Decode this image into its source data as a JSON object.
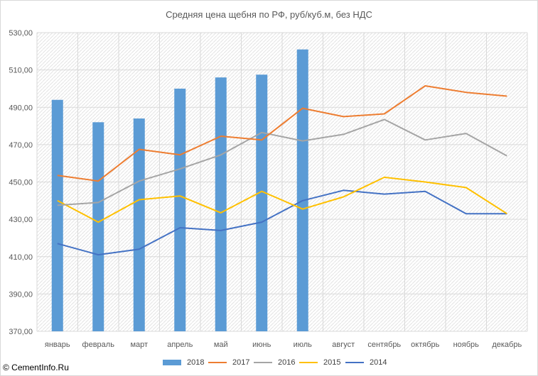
{
  "credit": "© CementInfo.Ru",
  "chart_data": {
    "type": "bar+line",
    "title": "Средняя цена щебня по РФ, руб/куб.м, без НДС",
    "categories": [
      "январь",
      "февраль",
      "март",
      "апрель",
      "май",
      "июнь",
      "июль",
      "август",
      "сентябрь",
      "октябрь",
      "ноябрь",
      "декабрь"
    ],
    "ylim": [
      370,
      530
    ],
    "yticks": [
      "370,00",
      "390,00",
      "410,00",
      "430,00",
      "450,00",
      "470,00",
      "490,00",
      "510,00",
      "530,00"
    ],
    "grid": true,
    "legend_position": "bottom",
    "series": [
      {
        "name": "2018",
        "kind": "bar",
        "color": "#5b9bd5",
        "values": [
          494,
          482,
          484,
          500,
          506,
          507.5,
          521,
          null,
          null,
          null,
          null,
          null
        ]
      },
      {
        "name": "2017",
        "kind": "line",
        "color": "#ed7d31",
        "values": [
          453.5,
          450.5,
          467.5,
          464.5,
          474.5,
          472.5,
          489.5,
          485,
          486.5,
          501.5,
          498,
          496
        ]
      },
      {
        "name": "2016",
        "kind": "line",
        "color": "#a5a5a5",
        "values": [
          437.5,
          439,
          450.5,
          457,
          464.5,
          476.5,
          472,
          475.5,
          483.5,
          472.5,
          476,
          464
        ]
      },
      {
        "name": "2015",
        "kind": "line",
        "color": "#ffc000",
        "values": [
          440,
          428.5,
          440.5,
          442.5,
          433.5,
          445,
          435.5,
          442,
          452.5,
          450,
          447,
          433
        ]
      },
      {
        "name": "2014",
        "kind": "line",
        "color": "#4472c4",
        "values": [
          417,
          411,
          414,
          425.5,
          424,
          428.5,
          440,
          445.5,
          443.5,
          445,
          433,
          433
        ]
      }
    ]
  }
}
